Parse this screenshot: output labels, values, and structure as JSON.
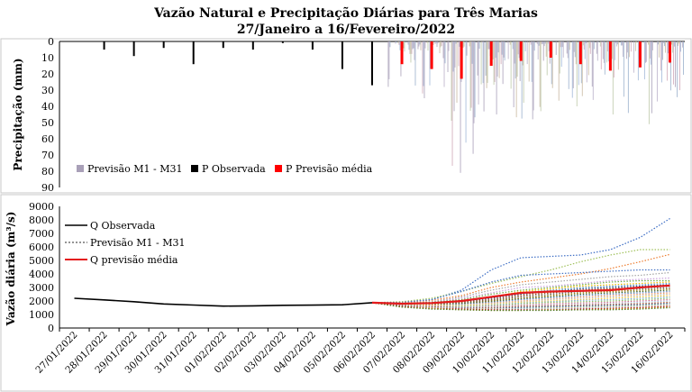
{
  "title_line1": "Vazão Natural e Precipitação Diárias para Três Marias",
  "title_line2": "27/Janeiro a 16/Fevereiro/2022",
  "chart_data": [
    {
      "type": "bar",
      "panel": "precipitation",
      "ylabel": "Precipitação (mm)",
      "ylim": [
        0,
        90
      ],
      "yaxis_inverted": true,
      "yticks": [
        0,
        10,
        20,
        30,
        40,
        50,
        60,
        70,
        80,
        90
      ],
      "observed": {
        "name": "P Observada",
        "color": "#000000",
        "dates": [
          "27/01/2022",
          "28/01/2022",
          "29/01/2022",
          "30/01/2022",
          "31/01/2022",
          "01/02/2022",
          "02/02/2022",
          "03/02/2022",
          "04/02/2022",
          "05/02/2022",
          "06/02/2022"
        ],
        "values": [
          0,
          5,
          9,
          4,
          14,
          4,
          5,
          1,
          5,
          17,
          27
        ]
      },
      "forecast_mean": {
        "name": "P Previsão média",
        "color": "#ff0000",
        "dates": [
          "07/02/2022",
          "08/02/2022",
          "09/02/2022",
          "10/02/2022",
          "11/02/2022",
          "12/02/2022",
          "13/02/2022",
          "14/02/2022",
          "15/02/2022",
          "16/02/2022"
        ],
        "values": [
          14,
          17,
          23,
          15,
          12,
          10,
          14,
          18,
          16,
          13
        ]
      },
      "forecast_members": {
        "name": "Previsão M1 - M31",
        "color": "#a9a0b8",
        "count": 31,
        "max_values": [
          28,
          35,
          81,
          45,
          48,
          43,
          40,
          45,
          51,
          37
        ],
        "spread_note": "ensemble bars between 0 and max per day"
      },
      "legend": "bottom-left"
    },
    {
      "type": "line",
      "panel": "discharge",
      "ylabel": "Vazão diária (m³/s)",
      "ylim": [
        0,
        9000
      ],
      "yticks": [
        0,
        1000,
        2000,
        3000,
        4000,
        5000,
        6000,
        7000,
        8000,
        9000
      ],
      "x_labels": [
        "27/01/2022",
        "28/01/2022",
        "29/01/2022",
        "30/01/2022",
        "31/01/2022",
        "01/02/2022",
        "02/02/2022",
        "03/02/2022",
        "04/02/2022",
        "05/02/2022",
        "06/02/2022",
        "07/02/2022",
        "08/02/2022",
        "09/02/2022",
        "10/02/2022",
        "11/02/2022",
        "12/02/2022",
        "13/02/2022",
        "14/02/2022",
        "15/02/2022",
        "16/02/2022"
      ],
      "series": [
        {
          "name": "Q Observada",
          "color": "#000000",
          "dates": [
            "27/01/2022",
            "28/01/2022",
            "29/01/2022",
            "30/01/2022",
            "31/01/2022",
            "01/02/2022",
            "02/02/2022",
            "03/02/2022",
            "04/02/2022",
            "05/02/2022",
            "06/02/2022"
          ],
          "values": [
            2200,
            2080,
            1950,
            1780,
            1700,
            1620,
            1640,
            1680,
            1690,
            1720,
            1870
          ]
        },
        {
          "name": "Q previsão média",
          "color": "#e41a1c",
          "dates": [
            "06/02/2022",
            "07/02/2022",
            "08/02/2022",
            "09/02/2022",
            "10/02/2022",
            "11/02/2022",
            "12/02/2022",
            "13/02/2022",
            "14/02/2022",
            "15/02/2022",
            "16/02/2022"
          ],
          "values": [
            1870,
            1800,
            1850,
            2000,
            2300,
            2600,
            2700,
            2750,
            2800,
            3000,
            3150
          ]
        }
      ],
      "members_label": "Previsão M1 - M31",
      "members": [
        {
          "color": "#3b6cc4",
          "values": [
            1870,
            1900,
            2100,
            2800,
            4300,
            5200,
            5300,
            5400,
            5800,
            6700,
            8100
          ]
        },
        {
          "color": "#9fc15a",
          "values": [
            1870,
            1950,
            2200,
            2700,
            3300,
            3800,
            4300,
            4900,
            5400,
            5800,
            5800
          ]
        },
        {
          "color": "#ed7d31",
          "values": [
            1870,
            1900,
            2050,
            2400,
            3000,
            3400,
            3700,
            4000,
            4400,
            4900,
            5450
          ]
        },
        {
          "color": "#4472c4",
          "values": [
            1870,
            1900,
            2100,
            2700,
            3400,
            3900,
            4000,
            4100,
            4200,
            4300,
            4300
          ]
        },
        {
          "color": "#a5a5a5",
          "values": [
            1870,
            1850,
            1950,
            2300,
            2800,
            3200,
            3400,
            3600,
            3800,
            3900,
            4100
          ]
        },
        {
          "color": "#c9a0dc",
          "values": [
            1870,
            1850,
            1900,
            2200,
            2600,
            3000,
            3100,
            3300,
            3500,
            3600,
            3700
          ]
        },
        {
          "color": "#70ad47",
          "values": [
            1870,
            1850,
            1900,
            2100,
            2500,
            2800,
            3000,
            3200,
            3400,
            3500,
            3500
          ]
        },
        {
          "color": "#ffc000",
          "values": [
            1870,
            1850,
            1850,
            2000,
            2300,
            2700,
            2900,
            3100,
            3200,
            3300,
            3400
          ]
        },
        {
          "color": "#5b9bd5",
          "values": [
            1870,
            1800,
            1850,
            2000,
            2300,
            2600,
            2800,
            3000,
            3100,
            3200,
            3300
          ]
        },
        {
          "color": "#264478",
          "values": [
            1870,
            1800,
            1800,
            1950,
            2200,
            2500,
            2700,
            2900,
            3000,
            3100,
            3200
          ]
        },
        {
          "color": "#9e480e",
          "values": [
            1870,
            1800,
            1800,
            1900,
            2100,
            2400,
            2600,
            2800,
            2900,
            3000,
            3100
          ]
        },
        {
          "color": "#636363",
          "values": [
            1870,
            1800,
            1750,
            1850,
            2050,
            2300,
            2500,
            2700,
            2800,
            2900,
            3000
          ]
        },
        {
          "color": "#997300",
          "values": [
            1870,
            1750,
            1750,
            1800,
            2000,
            2200,
            2400,
            2600,
            2700,
            2800,
            2900
          ]
        },
        {
          "color": "#43682b",
          "values": [
            1870,
            1750,
            1700,
            1800,
            1950,
            2150,
            2300,
            2500,
            2600,
            2700,
            2800
          ]
        },
        {
          "color": "#698ed0",
          "values": [
            1870,
            1750,
            1700,
            1750,
            1900,
            2100,
            2250,
            2400,
            2500,
            2600,
            2700
          ]
        },
        {
          "color": "#f1975a",
          "values": [
            1870,
            1750,
            1700,
            1700,
            1850,
            2000,
            2150,
            2300,
            2400,
            2500,
            2600
          ]
        },
        {
          "color": "#b7b7b7",
          "values": [
            1870,
            1700,
            1650,
            1700,
            1800,
            1950,
            2100,
            2200,
            2300,
            2400,
            2500
          ]
        },
        {
          "color": "#ffcd33",
          "values": [
            1870,
            1700,
            1650,
            1650,
            1750,
            1900,
            2000,
            2100,
            2200,
            2300,
            2400
          ]
        },
        {
          "color": "#7cafdd",
          "values": [
            1870,
            1700,
            1600,
            1600,
            1700,
            1850,
            1950,
            2050,
            2100,
            2200,
            2300
          ]
        },
        {
          "color": "#8cc168",
          "values": [
            1870,
            1700,
            1600,
            1600,
            1650,
            1800,
            1900,
            1950,
            2000,
            2100,
            2200
          ]
        },
        {
          "color": "#d06b8e",
          "values": [
            1870,
            1650,
            1600,
            1550,
            1600,
            1700,
            1800,
            1850,
            1900,
            2000,
            2100
          ]
        },
        {
          "color": "#a0c4e8",
          "values": [
            1870,
            1650,
            1550,
            1550,
            1550,
            1650,
            1700,
            1750,
            1800,
            1900,
            2000
          ]
        },
        {
          "color": "#c55a11",
          "values": [
            1870,
            1650,
            1550,
            1500,
            1500,
            1600,
            1650,
            1700,
            1750,
            1800,
            1900
          ]
        },
        {
          "color": "#7f6084",
          "values": [
            1870,
            1650,
            1550,
            1500,
            1450,
            1550,
            1600,
            1650,
            1700,
            1750,
            1850
          ]
        },
        {
          "color": "#2e75b6",
          "values": [
            1870,
            1600,
            1500,
            1450,
            1450,
            1500,
            1550,
            1600,
            1650,
            1700,
            1800
          ]
        },
        {
          "color": "#a9d18e",
          "values": [
            1870,
            1600,
            1500,
            1450,
            1400,
            1450,
            1500,
            1550,
            1600,
            1650,
            1750
          ]
        },
        {
          "color": "#f4b183",
          "values": [
            1870,
            1600,
            1500,
            1400,
            1400,
            1400,
            1450,
            1500,
            1550,
            1600,
            1700
          ]
        },
        {
          "color": "#8faadc",
          "values": [
            1870,
            1600,
            1450,
            1400,
            1350,
            1400,
            1400,
            1450,
            1500,
            1550,
            1650
          ]
        },
        {
          "color": "#c00000",
          "values": [
            1870,
            1600,
            1450,
            1400,
            1350,
            1350,
            1350,
            1400,
            1450,
            1500,
            1600
          ]
        },
        {
          "color": "#bf9000",
          "values": [
            1870,
            1550,
            1450,
            1350,
            1300,
            1300,
            1350,
            1350,
            1400,
            1450,
            1550
          ]
        },
        {
          "color": "#548235",
          "values": [
            1870,
            1550,
            1400,
            1350,
            1300,
            1300,
            1300,
            1350,
            1350,
            1400,
            1500
          ]
        }
      ],
      "legend": "top-left"
    }
  ]
}
